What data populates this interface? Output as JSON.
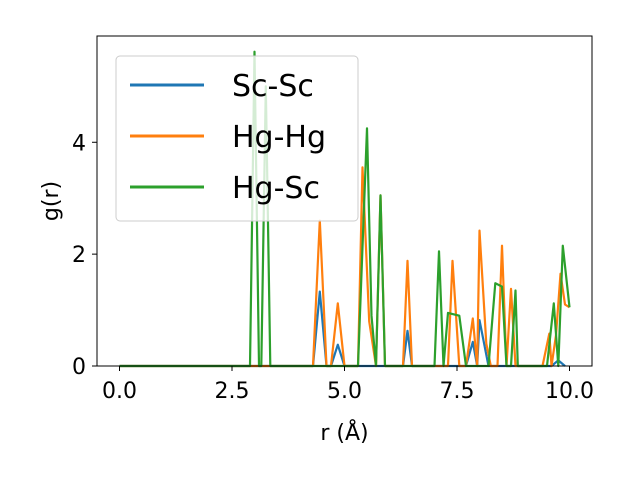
{
  "chart_data": {
    "type": "line",
    "xlabel": "r (Å)",
    "ylabel": "g(r)",
    "xlim": [
      -0.5,
      10.5
    ],
    "ylim": [
      0,
      5.9
    ],
    "xticks": [
      0.0,
      2.5,
      5.0,
      7.5,
      10.0
    ],
    "xtick_labels": [
      "0.0",
      "2.5",
      "5.0",
      "7.5",
      "10.0"
    ],
    "yticks": [
      0,
      2,
      4
    ],
    "ytick_labels": [
      "0",
      "2",
      "4"
    ],
    "grid": false,
    "legend_position": "top-left",
    "series": [
      {
        "name": "Sc-Sc",
        "color": "#1f77b4",
        "points": [
          [
            0.0,
            0
          ],
          [
            4.3,
            0
          ],
          [
            4.45,
            1.33
          ],
          [
            4.6,
            0
          ],
          [
            4.7,
            0
          ],
          [
            4.85,
            0.38
          ],
          [
            5.0,
            0
          ],
          [
            6.3,
            0
          ],
          [
            6.4,
            0.63
          ],
          [
            6.5,
            0
          ],
          [
            7.7,
            0
          ],
          [
            7.85,
            0.43
          ],
          [
            7.95,
            0
          ],
          [
            8.0,
            0.82
          ],
          [
            8.2,
            0
          ],
          [
            9.6,
            0
          ],
          [
            9.75,
            0.1
          ],
          [
            9.9,
            0
          ]
        ]
      },
      {
        "name": "Hg-Hg",
        "color": "#ff7f0e",
        "points": [
          [
            0.0,
            0
          ],
          [
            4.3,
            0
          ],
          [
            4.45,
            2.6
          ],
          [
            4.6,
            0
          ],
          [
            4.7,
            0
          ],
          [
            4.85,
            1.12
          ],
          [
            5.0,
            0
          ],
          [
            5.3,
            0
          ],
          [
            5.4,
            3.55
          ],
          [
            5.55,
            0.8
          ],
          [
            5.7,
            0
          ],
          [
            5.8,
            3.05
          ],
          [
            5.9,
            0
          ],
          [
            6.3,
            0
          ],
          [
            6.4,
            1.88
          ],
          [
            6.5,
            0
          ],
          [
            7.3,
            0
          ],
          [
            7.4,
            1.88
          ],
          [
            7.55,
            0
          ],
          [
            7.7,
            0
          ],
          [
            7.85,
            0.85
          ],
          [
            7.95,
            0
          ],
          [
            8.0,
            2.42
          ],
          [
            8.15,
            0.4
          ],
          [
            8.25,
            0
          ],
          [
            8.4,
            0
          ],
          [
            8.5,
            2.15
          ],
          [
            8.6,
            0
          ],
          [
            8.7,
            1.38
          ],
          [
            8.8,
            0
          ],
          [
            9.4,
            0
          ],
          [
            9.55,
            0.58
          ],
          [
            9.6,
            0
          ],
          [
            9.7,
            0.55
          ],
          [
            9.8,
            1.65
          ],
          [
            9.9,
            1.1
          ],
          [
            10.0,
            1.05
          ]
        ]
      },
      {
        "name": "Hg-Sc",
        "color": "#2ca02c",
        "points": [
          [
            0.0,
            0
          ],
          [
            2.9,
            0
          ],
          [
            3.0,
            5.62
          ],
          [
            3.1,
            0
          ],
          [
            3.15,
            0
          ],
          [
            3.25,
            5.0
          ],
          [
            3.35,
            0
          ],
          [
            5.3,
            0
          ],
          [
            5.5,
            4.25
          ],
          [
            5.6,
            0.9
          ],
          [
            5.7,
            0
          ],
          [
            5.8,
            3.05
          ],
          [
            5.9,
            0
          ],
          [
            7.0,
            0
          ],
          [
            7.1,
            2.05
          ],
          [
            7.2,
            0
          ],
          [
            7.3,
            0.95
          ],
          [
            7.55,
            0.9
          ],
          [
            7.7,
            0
          ],
          [
            8.2,
            0
          ],
          [
            8.35,
            1.48
          ],
          [
            8.5,
            1.42
          ],
          [
            8.6,
            0
          ],
          [
            8.7,
            0
          ],
          [
            8.8,
            1.35
          ],
          [
            8.85,
            0
          ],
          [
            9.5,
            0
          ],
          [
            9.65,
            1.12
          ],
          [
            9.75,
            0
          ],
          [
            9.85,
            2.15
          ],
          [
            10.0,
            1.05
          ]
        ]
      }
    ]
  }
}
